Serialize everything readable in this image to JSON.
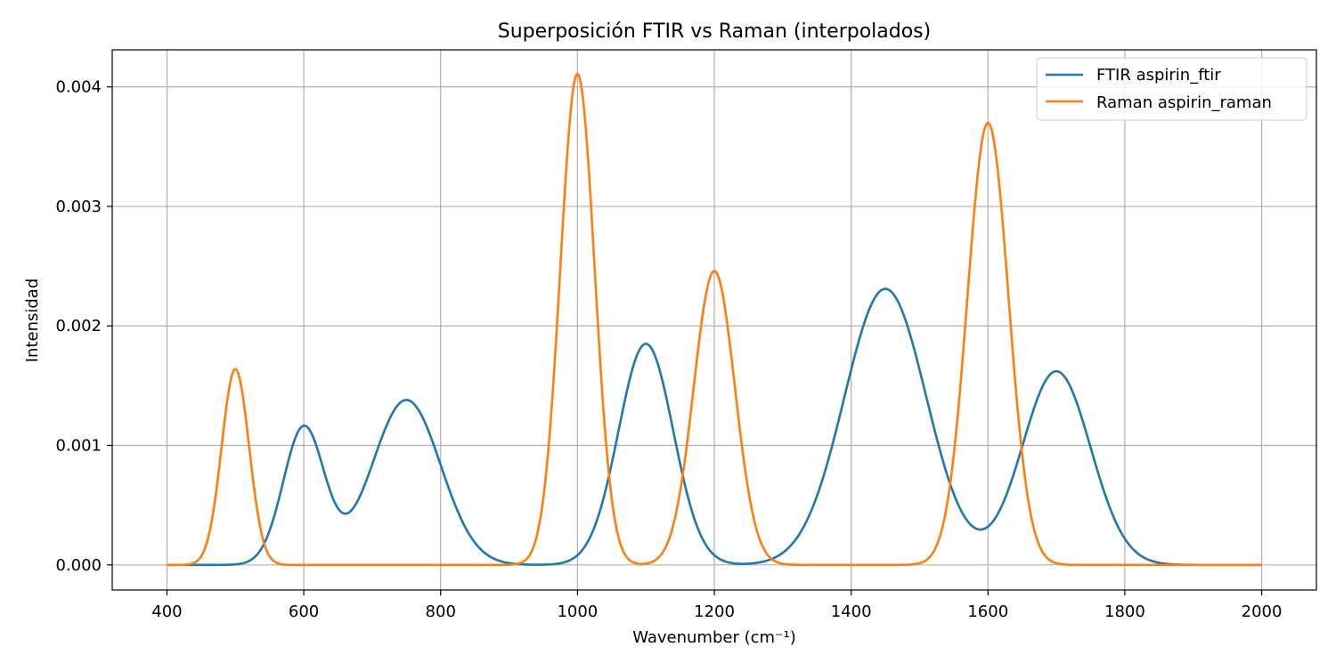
{
  "chart_data": {
    "type": "line",
    "title": "Superposición FTIR vs Raman (interpolados)",
    "xlabel": "Wavenumber (cm⁻¹)",
    "ylabel": "Intensidad",
    "xlim": [
      320,
      2080
    ],
    "ylim": [
      -0.00021,
      0.00431
    ],
    "xticks": [
      400,
      600,
      800,
      1000,
      1200,
      1400,
      1600,
      1800,
      2000
    ],
    "xtick_labels": [
      "400",
      "600",
      "800",
      "1000",
      "1200",
      "1400",
      "1600",
      "1800",
      "2000"
    ],
    "yticks": [
      0.0,
      0.001,
      0.002,
      0.003,
      0.004
    ],
    "ytick_labels": [
      "0.000",
      "0.001",
      "0.002",
      "0.003",
      "0.004"
    ],
    "grid": true,
    "legend_position": "top-right",
    "x_range": [
      400,
      2000
    ],
    "series": [
      {
        "name": "FTIR aspirin_ftir",
        "color": "#1f77b4",
        "peaks": [
          {
            "center": 600,
            "height": 0.00115,
            "sigma": 30
          },
          {
            "center": 750,
            "height": 0.00138,
            "sigma": 50
          },
          {
            "center": 1100,
            "height": 0.00185,
            "sigma": 40
          },
          {
            "center": 1450,
            "height": 0.00231,
            "sigma": 60
          },
          {
            "center": 1700,
            "height": 0.00162,
            "sigma": 50
          }
        ]
      },
      {
        "name": "Raman aspirin_raman",
        "color": "#ff7f0e",
        "peaks": [
          {
            "center": 500,
            "height": 0.00164,
            "sigma": 20
          },
          {
            "center": 1000,
            "height": 0.00411,
            "sigma": 25
          },
          {
            "center": 1200,
            "height": 0.00246,
            "sigma": 30
          },
          {
            "center": 1600,
            "height": 0.0037,
            "sigma": 30
          }
        ]
      }
    ]
  }
}
